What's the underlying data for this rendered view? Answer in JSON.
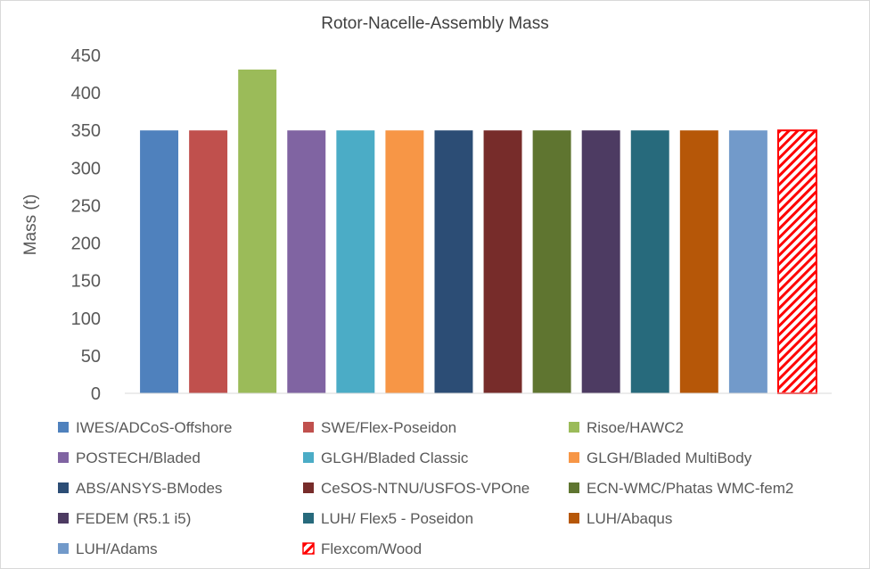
{
  "chart_data": {
    "type": "bar",
    "title": "Rotor-Nacelle-Assembly Mass",
    "xlabel": "",
    "ylabel": "Mass (t)",
    "ylim": [
      0,
      450
    ],
    "yticks": [
      0,
      50,
      100,
      150,
      200,
      250,
      300,
      350,
      400,
      450
    ],
    "grid": false,
    "legend_position": "bottom",
    "series": [
      {
        "name": "IWES/ADCoS-Offshore",
        "value": 350,
        "color": "#4F81BD"
      },
      {
        "name": "SWE/Flex-Poseidon",
        "value": 350,
        "color": "#C0504D"
      },
      {
        "name": "Risoe/HAWC2",
        "value": 431,
        "color": "#9BBB59"
      },
      {
        "name": "POSTECH/Bladed",
        "value": 350,
        "color": "#8064A2"
      },
      {
        "name": "GLGH/Bladed Classic",
        "value": 350,
        "color": "#4BACC6"
      },
      {
        "name": "GLGH/Bladed MultiBody",
        "value": 350,
        "color": "#F79646"
      },
      {
        "name": "ABS/ANSYS-BModes",
        "value": 350,
        "color": "#2C4D75"
      },
      {
        "name": "CeSOS-NTNU/USFOS-VPOne",
        "value": 350,
        "color": "#772C2A"
      },
      {
        "name": "ECN-WMC/Phatas WMC-fem2",
        "value": 350,
        "color": "#5F7530"
      },
      {
        "name": "FEDEM (R5.1 i5)",
        "value": 350,
        "color": "#4D3B62"
      },
      {
        "name": "LUH/ Flex5 - Poseidon",
        "value": 350,
        "color": "#276A7C"
      },
      {
        "name": "LUH/Abaqus",
        "value": 350,
        "color": "#B65708"
      },
      {
        "name": "LUH/Adams",
        "value": 350,
        "color": "#729ACA"
      },
      {
        "name": "Flexcom/Wood",
        "value": 350,
        "color": "#FF0000",
        "pattern": "diagonal-hatch"
      }
    ]
  }
}
